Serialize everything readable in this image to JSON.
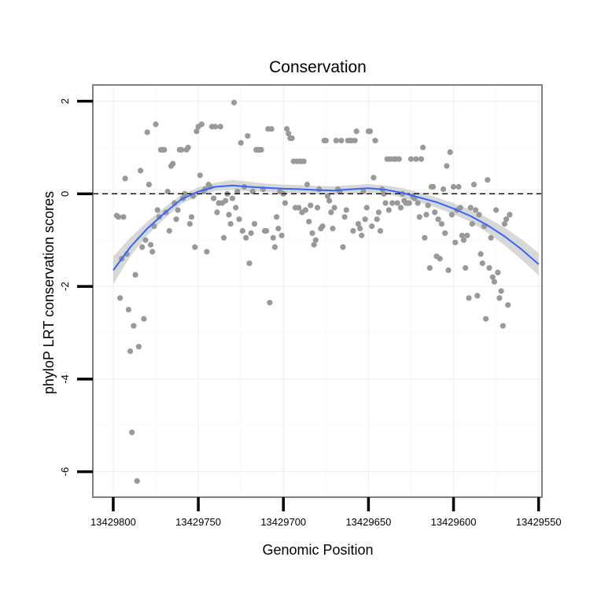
{
  "chart_data": {
    "type": "scatter",
    "title": "Conservation",
    "xlabel": "Genomic Position",
    "ylabel": "phyloP LRT conservation scores",
    "x_reversed": true,
    "xlim": [
      13429812,
      13429548
    ],
    "ylim": [
      -6.55,
      2.35
    ],
    "x_ticks": [
      13429800,
      13429750,
      13429700,
      13429650,
      13429600,
      13429550
    ],
    "x_tick_labels": [
      "13429800",
      "13429750",
      "13429700",
      "13429650",
      "13429600",
      "13429550"
    ],
    "y_ticks": [
      2,
      0,
      -2,
      -4,
      -6
    ],
    "y_tick_labels": [
      "2",
      "0",
      "-2",
      "-4",
      "-6"
    ],
    "grid": true,
    "reference_line": {
      "y": 0,
      "style": "dashed"
    },
    "points": [
      {
        "x": 13429798,
        "y": -0.47
      },
      {
        "x": 13429797,
        "y": -0.5
      },
      {
        "x": 13429796,
        "y": -2.25
      },
      {
        "x": 13429795,
        "y": -1.4
      },
      {
        "x": 13429794,
        "y": -0.5
      },
      {
        "x": 13429793,
        "y": 0.33
      },
      {
        "x": 13429792,
        "y": -1.3
      },
      {
        "x": 13429791,
        "y": -2.5
      },
      {
        "x": 13429790,
        "y": -3.4
      },
      {
        "x": 13429789,
        "y": -5.15
      },
      {
        "x": 13429788,
        "y": -2.85
      },
      {
        "x": 13429787,
        "y": -1.75
      },
      {
        "x": 13429786,
        "y": -6.2
      },
      {
        "x": 13429785,
        "y": -3.3
      },
      {
        "x": 13429784,
        "y": 0.5
      },
      {
        "x": 13429783,
        "y": -1.15
      },
      {
        "x": 13429782,
        "y": -2.7
      },
      {
        "x": 13429781,
        "y": -1.0
      },
      {
        "x": 13429780,
        "y": 1.33
      },
      {
        "x": 13429779,
        "y": 0.2
      },
      {
        "x": 13429778,
        "y": -1.1
      },
      {
        "x": 13429777,
        "y": -1.25
      },
      {
        "x": 13429776,
        "y": -0.7
      },
      {
        "x": 13429775,
        "y": 1.5
      },
      {
        "x": 13429774,
        "y": -0.35
      },
      {
        "x": 13429773,
        "y": -0.5
      },
      {
        "x": 13429772,
        "y": 0.95
      },
      {
        "x": 13429771,
        "y": 0.95
      },
      {
        "x": 13429770,
        "y": 0.95
      },
      {
        "x": 13429769,
        "y": -0.4
      },
      {
        "x": 13429768,
        "y": 0.05
      },
      {
        "x": 13429767,
        "y": -0.8
      },
      {
        "x": 13429766,
        "y": 0.6
      },
      {
        "x": 13429765,
        "y": 0.65
      },
      {
        "x": 13429764,
        "y": -0.2
      },
      {
        "x": 13429763,
        "y": -0.55
      },
      {
        "x": 13429762,
        "y": -0.35
      },
      {
        "x": 13429761,
        "y": 0.95
      },
      {
        "x": 13429760,
        "y": 0.95
      },
      {
        "x": 13429759,
        "y": -0.1
      },
      {
        "x": 13429758,
        "y": 0.0
      },
      {
        "x": 13429757,
        "y": 0.95
      },
      {
        "x": 13429756,
        "y": 1.0
      },
      {
        "x": 13429755,
        "y": -0.65
      },
      {
        "x": 13429754,
        "y": -0.5
      },
      {
        "x": 13429753,
        "y": -0.05
      },
      {
        "x": 13429752,
        "y": -1.15
      },
      {
        "x": 13429751,
        "y": 1.35
      },
      {
        "x": 13429750,
        "y": 1.45
      },
      {
        "x": 13429749,
        "y": 0.4
      },
      {
        "x": 13429748,
        "y": 1.5
      },
      {
        "x": 13429747,
        "y": 0.05
      },
      {
        "x": 13429746,
        "y": 0.1
      },
      {
        "x": 13429745,
        "y": -1.25
      },
      {
        "x": 13429744,
        "y": 0.2
      },
      {
        "x": 13429743,
        "y": 0.15
      },
      {
        "x": 13429742,
        "y": 1.45
      },
      {
        "x": 13429741,
        "y": -0.1
      },
      {
        "x": 13429740,
        "y": 1.45
      },
      {
        "x": 13429739,
        "y": -0.4
      },
      {
        "x": 13429738,
        "y": -0.2
      },
      {
        "x": 13429737,
        "y": 1.45
      },
      {
        "x": 13429736,
        "y": -0.2
      },
      {
        "x": 13429735,
        "y": -0.95
      },
      {
        "x": 13429734,
        "y": -0.15
      },
      {
        "x": 13429733,
        "y": 0.0
      },
      {
        "x": 13429732,
        "y": -0.45
      },
      {
        "x": 13429731,
        "y": -0.65
      },
      {
        "x": 13429730,
        "y": -0.1
      },
      {
        "x": 13429729,
        "y": 1.97
      },
      {
        "x": 13429728,
        "y": -0.3
      },
      {
        "x": 13429727,
        "y": 0.05
      },
      {
        "x": 13429726,
        "y": -0.55
      },
      {
        "x": 13429725,
        "y": 1.1
      },
      {
        "x": 13429724,
        "y": -0.8
      },
      {
        "x": 13429723,
        "y": 0.15
      },
      {
        "x": 13429722,
        "y": -0.95
      },
      {
        "x": 13429721,
        "y": 1.25
      },
      {
        "x": 13429720,
        "y": -1.5
      },
      {
        "x": 13429719,
        "y": -0.85
      },
      {
        "x": 13429718,
        "y": 0.05
      },
      {
        "x": 13429717,
        "y": -0.65
      },
      {
        "x": 13429716,
        "y": 0.95
      },
      {
        "x": 13429715,
        "y": 0.95
      },
      {
        "x": 13429714,
        "y": 0.95
      },
      {
        "x": 13429713,
        "y": 0.95
      },
      {
        "x": 13429712,
        "y": 0.1
      },
      {
        "x": 13429711,
        "y": -0.8
      },
      {
        "x": 13429710,
        "y": -0.8
      },
      {
        "x": 13429709,
        "y": 1.4
      },
      {
        "x": 13429708,
        "y": -2.35
      },
      {
        "x": 13429707,
        "y": 1.4
      },
      {
        "x": 13429706,
        "y": -0.95
      },
      {
        "x": 13429705,
        "y": -1.15
      },
      {
        "x": 13429704,
        "y": -0.5
      },
      {
        "x": 13429703,
        "y": -0.75
      },
      {
        "x": 13429702,
        "y": 0.05
      },
      {
        "x": 13429701,
        "y": -0.9
      },
      {
        "x": 13429700,
        "y": 0.0
      },
      {
        "x": 13429699,
        "y": -0.2
      },
      {
        "x": 13429698,
        "y": 1.4
      },
      {
        "x": 13429697,
        "y": 1.3
      },
      {
        "x": 13429696,
        "y": 1.2
      },
      {
        "x": 13429695,
        "y": 1.2
      },
      {
        "x": 13429694,
        "y": 0.7
      },
      {
        "x": 13429693,
        "y": -0.3
      },
      {
        "x": 13429692,
        "y": 0.7
      },
      {
        "x": 13429691,
        "y": -0.3
      },
      {
        "x": 13429690,
        "y": 0.7
      },
      {
        "x": 13429689,
        "y": -0.4
      },
      {
        "x": 13429688,
        "y": 0.7
      },
      {
        "x": 13429687,
        "y": -0.35
      },
      {
        "x": 13429686,
        "y": 0.2
      },
      {
        "x": 13429685,
        "y": -0.6
      },
      {
        "x": 13429684,
        "y": -0.25
      },
      {
        "x": 13429683,
        "y": -0.85
      },
      {
        "x": 13429682,
        "y": -1.1
      },
      {
        "x": 13429681,
        "y": -1.0
      },
      {
        "x": 13429680,
        "y": -0.3
      },
      {
        "x": 13429679,
        "y": 0.1
      },
      {
        "x": 13429678,
        "y": -0.75
      },
      {
        "x": 13429677,
        "y": -0.7
      },
      {
        "x": 13429676,
        "y": 1.15
      },
      {
        "x": 13429675,
        "y": 1.15
      },
      {
        "x": 13429674,
        "y": -0.05
      },
      {
        "x": 13429673,
        "y": -0.15
      },
      {
        "x": 13429672,
        "y": -0.4
      },
      {
        "x": 13429671,
        "y": -0.75
      },
      {
        "x": 13429670,
        "y": -0.3
      },
      {
        "x": 13429669,
        "y": 1.15
      },
      {
        "x": 13429668,
        "y": 0.1
      },
      {
        "x": 13429667,
        "y": 0.05
      },
      {
        "x": 13429666,
        "y": 1.15
      },
      {
        "x": 13429665,
        "y": -1.15
      },
      {
        "x": 13429664,
        "y": -0.5
      },
      {
        "x": 13429663,
        "y": -0.35
      },
      {
        "x": 13429662,
        "y": 1.15
      },
      {
        "x": 13429661,
        "y": 1.15
      },
      {
        "x": 13429660,
        "y": 1.15
      },
      {
        "x": 13429659,
        "y": -0.8
      },
      {
        "x": 13429658,
        "y": 1.15
      },
      {
        "x": 13429657,
        "y": 1.35
      },
      {
        "x": 13429656,
        "y": -0.65
      },
      {
        "x": 13429655,
        "y": -0.75
      },
      {
        "x": 13429654,
        "y": -0.9
      },
      {
        "x": 13429653,
        "y": 0.05
      },
      {
        "x": 13429652,
        "y": -0.55
      },
      {
        "x": 13429651,
        "y": -0.3
      },
      {
        "x": 13429650,
        "y": 1.35
      },
      {
        "x": 13429649,
        "y": 1.35
      },
      {
        "x": 13429648,
        "y": -0.7
      },
      {
        "x": 13429647,
        "y": 0.35
      },
      {
        "x": 13429646,
        "y": 1.15
      },
      {
        "x": 13429645,
        "y": -0.55
      },
      {
        "x": 13429644,
        "y": -0.4
      },
      {
        "x": 13429643,
        "y": -0.8
      },
      {
        "x": 13429642,
        "y": 0.1
      },
      {
        "x": 13429641,
        "y": 0.0
      },
      {
        "x": 13429640,
        "y": -0.2
      },
      {
        "x": 13429639,
        "y": 0.75
      },
      {
        "x": 13429638,
        "y": -0.35
      },
      {
        "x": 13429637,
        "y": 0.75
      },
      {
        "x": 13429636,
        "y": -0.2
      },
      {
        "x": 13429635,
        "y": 0.75
      },
      {
        "x": 13429634,
        "y": 0.75
      },
      {
        "x": 13429633,
        "y": -0.2
      },
      {
        "x": 13429632,
        "y": 0.75
      },
      {
        "x": 13429631,
        "y": -0.3
      },
      {
        "x": 13429630,
        "y": 0.0
      },
      {
        "x": 13429629,
        "y": -0.15
      },
      {
        "x": 13429628,
        "y": -0.2
      },
      {
        "x": 13429627,
        "y": -0.2
      },
      {
        "x": 13429626,
        "y": -0.2
      },
      {
        "x": 13429625,
        "y": 0.75
      },
      {
        "x": 13429624,
        "y": -0.05
      },
      {
        "x": 13429623,
        "y": -0.1
      },
      {
        "x": 13429622,
        "y": 0.75
      },
      {
        "x": 13429621,
        "y": -0.2
      },
      {
        "x": 13429620,
        "y": -0.5
      },
      {
        "x": 13429619,
        "y": 0.75
      },
      {
        "x": 13429618,
        "y": 1.0
      },
      {
        "x": 13429617,
        "y": -0.95
      },
      {
        "x": 13429616,
        "y": -0.45
      },
      {
        "x": 13429615,
        "y": -0.25
      },
      {
        "x": 13429614,
        "y": -1.6
      },
      {
        "x": 13429613,
        "y": 0.15
      },
      {
        "x": 13429612,
        "y": 0.15
      },
      {
        "x": 13429611,
        "y": -0.4
      },
      {
        "x": 13429610,
        "y": -1.35
      },
      {
        "x": 13429609,
        "y": -0.55
      },
      {
        "x": 13429608,
        "y": -1.4
      },
      {
        "x": 13429607,
        "y": -0.65
      },
      {
        "x": 13429606,
        "y": 0.1
      },
      {
        "x": 13429605,
        "y": -0.85
      },
      {
        "x": 13429604,
        "y": 0.6
      },
      {
        "x": 13429603,
        "y": -1.65
      },
      {
        "x": 13429602,
        "y": 0.9
      },
      {
        "x": 13429601,
        "y": -0.45
      },
      {
        "x": 13429600,
        "y": 0.15
      },
      {
        "x": 13429599,
        "y": -1.05
      },
      {
        "x": 13429598,
        "y": -0.35
      },
      {
        "x": 13429597,
        "y": 0.15
      },
      {
        "x": 13429596,
        "y": -0.3
      },
      {
        "x": 13429595,
        "y": -0.9
      },
      {
        "x": 13429594,
        "y": -1.0
      },
      {
        "x": 13429593,
        "y": -1.6
      },
      {
        "x": 13429592,
        "y": -0.9
      },
      {
        "x": 13429591,
        "y": -2.25
      },
      {
        "x": 13429590,
        "y": -0.3
      },
      {
        "x": 13429589,
        "y": -0.65
      },
      {
        "x": 13429588,
        "y": 0.2
      },
      {
        "x": 13429587,
        "y": -0.35
      },
      {
        "x": 13429586,
        "y": -2.2
      },
      {
        "x": 13429585,
        "y": -0.45
      },
      {
        "x": 13429584,
        "y": -1.3
      },
      {
        "x": 13429583,
        "y": -1.5
      },
      {
        "x": 13429582,
        "y": -0.7
      },
      {
        "x": 13429581,
        "y": -2.7
      },
      {
        "x": 13429580,
        "y": 0.3
      },
      {
        "x": 13429579,
        "y": -1.6
      },
      {
        "x": 13429578,
        "y": -0.95
      },
      {
        "x": 13429577,
        "y": -1.8
      },
      {
        "x": 13429576,
        "y": -1.9
      },
      {
        "x": 13429575,
        "y": -0.35
      },
      {
        "x": 13429574,
        "y": -1.7
      },
      {
        "x": 13429573,
        "y": -2.25
      },
      {
        "x": 13429572,
        "y": -2.1
      },
      {
        "x": 13429571,
        "y": -2.85
      },
      {
        "x": 13429570,
        "y": -0.65
      },
      {
        "x": 13429569,
        "y": -0.55
      },
      {
        "x": 13429568,
        "y": -2.4
      },
      {
        "x": 13429567,
        "y": -0.45
      }
    ],
    "smooth": {
      "color": "#3366ff",
      "x": [
        13429800,
        13429790,
        13429780,
        13429770,
        13429760,
        13429750,
        13429740,
        13429730,
        13429720,
        13429710,
        13429700,
        13429690,
        13429680,
        13429670,
        13429660,
        13429650,
        13429640,
        13429630,
        13429620,
        13429610,
        13429600,
        13429590,
        13429580,
        13429570,
        13429560,
        13429550
      ],
      "y": [
        -1.65,
        -1.15,
        -0.75,
        -0.42,
        -0.12,
        0.05,
        0.15,
        0.18,
        0.15,
        0.13,
        0.11,
        0.1,
        0.08,
        0.07,
        0.1,
        0.12,
        0.09,
        0.02,
        -0.08,
        -0.18,
        -0.32,
        -0.48,
        -0.68,
        -0.92,
        -1.2,
        -1.52
      ],
      "upper": [
        -1.35,
        -0.95,
        -0.6,
        -0.3,
        -0.02,
        0.14,
        0.24,
        0.3,
        0.26,
        0.22,
        0.2,
        0.19,
        0.17,
        0.16,
        0.19,
        0.21,
        0.18,
        0.12,
        0.03,
        -0.08,
        -0.2,
        -0.35,
        -0.52,
        -0.73,
        -0.98,
        -1.28
      ],
      "lower": [
        -1.95,
        -1.35,
        -0.9,
        -0.54,
        -0.22,
        -0.04,
        0.06,
        0.08,
        0.05,
        0.04,
        0.02,
        0.01,
        -0.01,
        -0.02,
        0.01,
        0.03,
        0.0,
        -0.08,
        -0.19,
        -0.3,
        -0.44,
        -0.61,
        -0.84,
        -1.11,
        -1.42,
        -1.76
      ]
    }
  }
}
